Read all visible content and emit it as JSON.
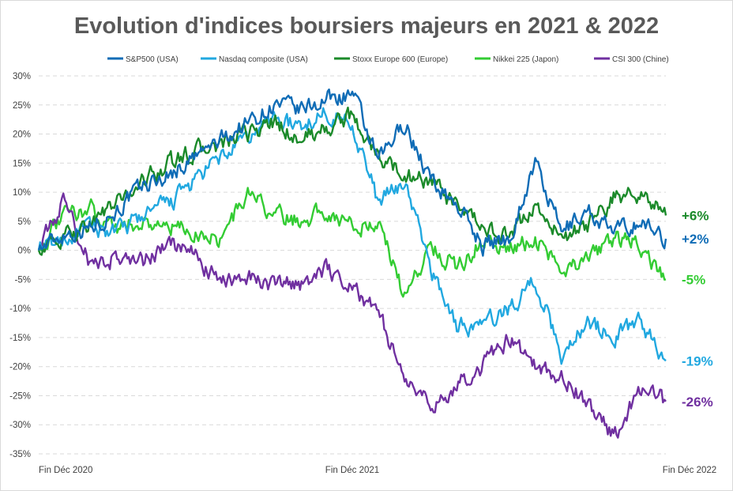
{
  "chart_data": {
    "type": "line",
    "title": "Evolution d'indices boursiers majeurs en 2021 & 2022",
    "x": [
      "Fin Déc 2020",
      "Fin Déc 2021",
      "Fin Déc 2022"
    ],
    "xlim": [
      0,
      24
    ],
    "y_tick_labels": [
      "30%",
      "25%",
      "20%",
      "15%",
      "10%",
      "5%",
      "0%",
      "-5%",
      "-10%",
      "-15%",
      "-20%",
      "-25%",
      "-30%",
      "-35%"
    ],
    "ylim": [
      -35,
      30
    ],
    "grid": true,
    "legend_position": "top",
    "series": [
      {
        "name": "S&P500 (USA)",
        "color": "#0f6cb6",
        "end_label": "+2%",
        "x": [
          0,
          1,
          2,
          3,
          4,
          5,
          6,
          7,
          8,
          9,
          10,
          11,
          12,
          13,
          14,
          15,
          16,
          17,
          18,
          19,
          20,
          21,
          22,
          23,
          24
        ],
        "values": [
          0,
          3,
          4,
          7,
          11,
          13,
          16,
          19,
          22,
          25,
          24,
          26,
          27,
          15,
          22,
          12,
          8,
          1,
          2,
          15,
          3,
          7,
          3,
          5,
          2
        ]
      },
      {
        "name": "Nasdaq composite (USA)",
        "color": "#21a8e0",
        "end_label": "-19%",
        "x": [
          0,
          1,
          2,
          3,
          4,
          5,
          6,
          7,
          8,
          9,
          10,
          11,
          12,
          13,
          14,
          15,
          16,
          17,
          18,
          19,
          20,
          21,
          22,
          23,
          24
        ],
        "values": [
          0,
          2,
          4,
          3,
          6,
          8,
          12,
          16,
          19,
          23,
          21,
          24,
          22,
          8,
          12,
          -3,
          -13,
          -13,
          -10,
          -5,
          -18,
          -12,
          -15,
          -12,
          -19
        ]
      },
      {
        "name": "Stoxx Europe 600 (Europe)",
        "color": "#1b8a2a",
        "end_label": "+6%",
        "x": [
          0,
          1,
          2,
          3,
          4,
          5,
          6,
          7,
          8,
          9,
          10,
          11,
          12,
          13,
          14,
          15,
          16,
          17,
          18,
          19,
          20,
          21,
          22,
          23,
          24
        ],
        "values": [
          0,
          2,
          5,
          8,
          12,
          15,
          17,
          18,
          20,
          22,
          19,
          21,
          23,
          16,
          13,
          12,
          7,
          4,
          2,
          8,
          2,
          4,
          9,
          10,
          6
        ]
      },
      {
        "name": "Nikkei 225 (Japon)",
        "color": "#33cc33",
        "end_label": "-5%",
        "x": [
          0,
          1,
          2,
          3,
          4,
          5,
          6,
          7,
          8,
          9,
          10,
          11,
          12,
          13,
          14,
          15,
          16,
          17,
          18,
          19,
          20,
          21,
          22,
          23,
          24
        ],
        "values": [
          0,
          6,
          7,
          4,
          5,
          4,
          3,
          2,
          10,
          6,
          5,
          7,
          4,
          5,
          -8,
          1,
          -3,
          2,
          0,
          2,
          -3,
          -2,
          2,
          1,
          -5
        ]
      },
      {
        "name": "CSI 300 (Chine)",
        "color": "#7030a0",
        "end_label": "-26%",
        "x": [
          0,
          1,
          2,
          3,
          4,
          5,
          6,
          7,
          8,
          9,
          10,
          11,
          12,
          13,
          14,
          15,
          16,
          17,
          18,
          19,
          20,
          21,
          22,
          23,
          24
        ],
        "values": [
          0,
          9,
          -3,
          -1,
          -2,
          1,
          -1,
          -6,
          -4,
          -6,
          -6,
          -3,
          -6,
          -11,
          -22,
          -27,
          -23,
          -20,
          -15,
          -20,
          -22,
          -26,
          -32,
          -24,
          -26
        ]
      }
    ]
  }
}
